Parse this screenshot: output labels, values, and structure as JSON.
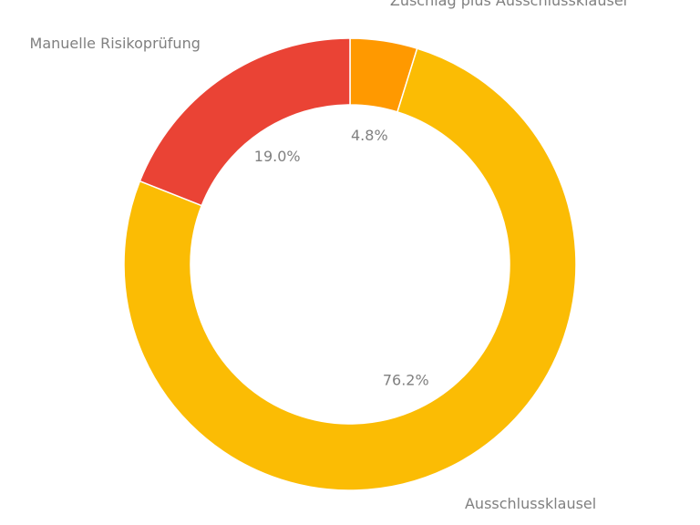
{
  "chart_data": {
    "type": "pie",
    "donut": true,
    "categories": [
      "Zuschlag plus Ausschlussklausel",
      "Ausschlussklausel",
      "Manuelle Risikoprüfung"
    ],
    "values": [
      4.8,
      76.2,
      19.0
    ],
    "value_labels": [
      "4.8%",
      "76.2%",
      "19.0%"
    ],
    "colors": [
      "#FF9900",
      "#FBBC04",
      "#EA4335"
    ],
    "start_angle_deg": 90,
    "direction": "clockwise",
    "title": "",
    "legend": "none"
  }
}
